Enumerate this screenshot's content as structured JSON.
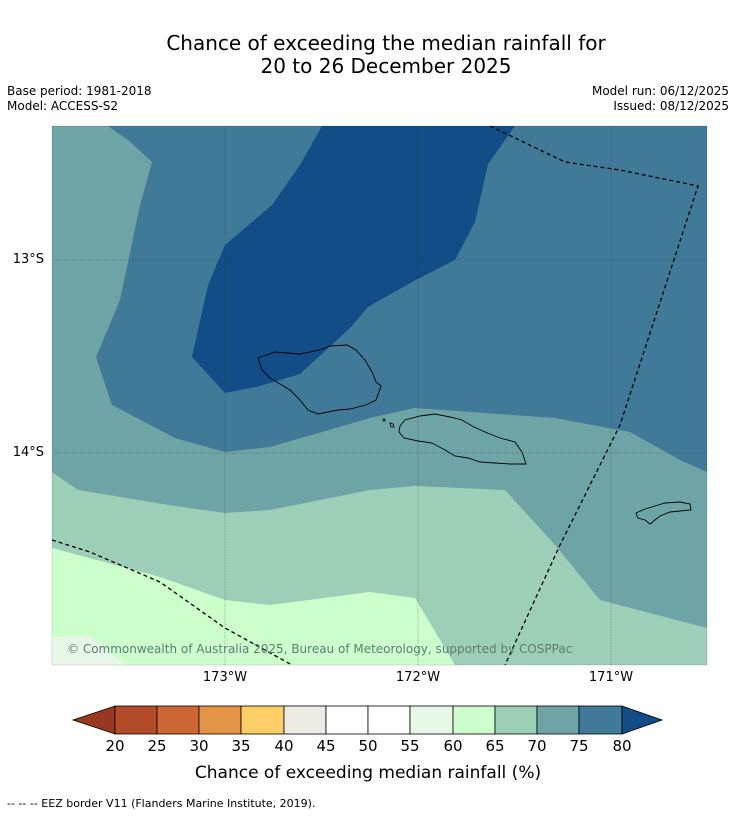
{
  "header": {
    "title_line1": "Chance of exceeding the median rainfall for",
    "title_line2": "20 to 26 December 2025",
    "base_period": "Base period: 1981-2018",
    "model": "Model: ACCESS-S2",
    "model_run": "Model run: 06/12/2025",
    "issued": "Issued: 08/12/2025"
  },
  "map": {
    "lat_labels": [
      "13°S",
      "14°S"
    ],
    "lon_labels": [
      "173°W",
      "172°W",
      "171°W"
    ],
    "copyright": "© Commonwealth of Australia 2025, Bureau of Meteorology, supported by COSPPac",
    "colors": {
      "lt65": "#ccffcc",
      "60_65": "#ccffcc",
      "65_70": "#9dcfb8",
      "70_75": "#6fa4a6",
      "75_80": "#417998",
      "gt80": "#124d87",
      "55_60": "#e8f8e8"
    }
  },
  "colorbar": {
    "label": "Chance of exceeding median rainfall (%)",
    "ticks": [
      "20",
      "25",
      "30",
      "35",
      "40",
      "45",
      "50",
      "55",
      "60",
      "65",
      "70",
      "75",
      "80"
    ],
    "colors": {
      "under": "#983822",
      "c20_25": "#b34b28",
      "c25_30": "#cd6534",
      "c30_35": "#e49446",
      "c35_40": "#fdcd66",
      "c40_45": "#eeeae4",
      "c45_50": "#ffffff",
      "c50_55": "#ffffff",
      "c55_60": "#e8f8e8",
      "c60_65": "#ccffcc",
      "c65_70": "#9dcfb8",
      "c70_75": "#6fa4a6",
      "c75_80": "#417998",
      "over": "#124d87"
    }
  },
  "footnote": "--  --  -- EEZ border V11 (Flanders Marine Institute, 2019)."
}
